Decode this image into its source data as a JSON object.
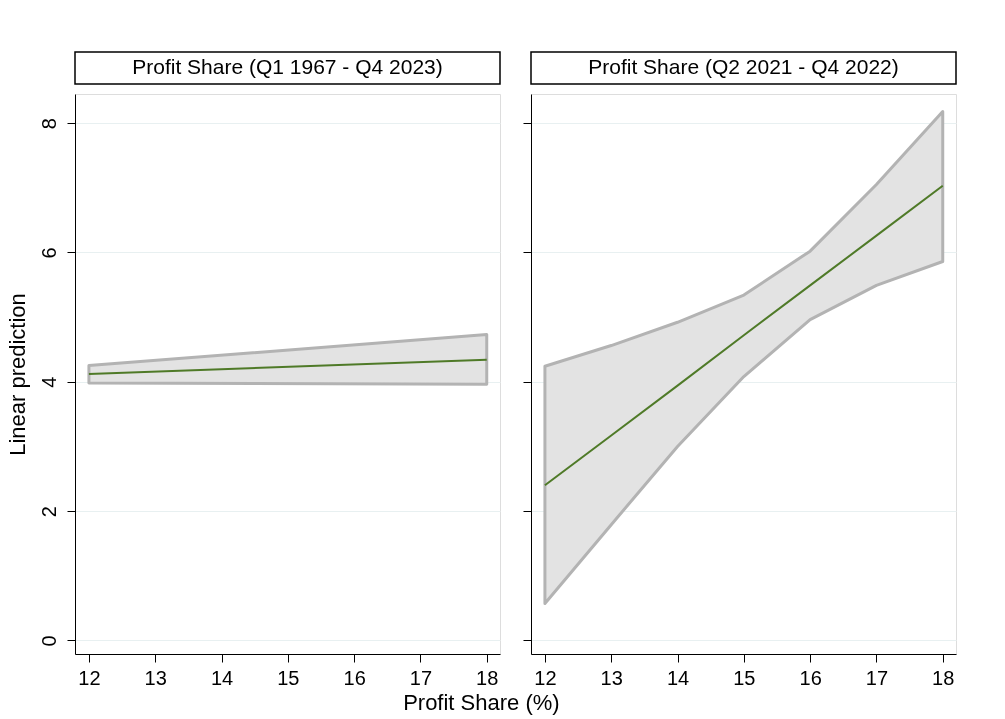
{
  "chart_data": [
    {
      "type": "line",
      "title": "Profit Share (Q1 1967 - Q4 2023)",
      "xlabel": "Profit Share (%)",
      "ylabel": "Linear prediction",
      "xlim": [
        11.79,
        18.2
      ],
      "xticks": [
        12,
        13,
        14,
        15,
        16,
        17,
        18
      ],
      "ylim": [
        -0.21,
        8.45
      ],
      "yticks": [
        0,
        2,
        4,
        6,
        8
      ],
      "grid": "y",
      "series": [
        {
          "color": "#4f7a28",
          "x": [
            12,
            18
          ],
          "values": [
            4.12,
            4.34
          ],
          "lower": [
            3.98,
            3.96
          ],
          "upper": [
            4.25,
            4.73
          ]
        }
      ]
    },
    {
      "type": "line",
      "title": "Profit Share (Q2 2021 - Q4 2022)",
      "xlim": [
        11.79,
        18.2
      ],
      "xticks": [
        12,
        13,
        14,
        15,
        16,
        17,
        18
      ],
      "ylim": [
        -0.21,
        8.45
      ],
      "yticks": [
        0,
        2,
        4,
        6,
        8
      ],
      "grid": "y",
      "tick_labels": "x",
      "series": [
        {
          "color": "#4f7a28",
          "x": [
            12,
            13,
            14,
            15,
            16,
            17,
            18
          ],
          "values": [
            2.4,
            3.17,
            3.94,
            4.72,
            5.49,
            6.26,
            7.03
          ],
          "lower": [
            0.57,
            1.79,
            3.0,
            4.08,
            4.96,
            5.49,
            5.86
          ],
          "upper": [
            4.24,
            4.56,
            4.92,
            5.34,
            6.02,
            7.05,
            8.18
          ]
        }
      ]
    }
  ]
}
